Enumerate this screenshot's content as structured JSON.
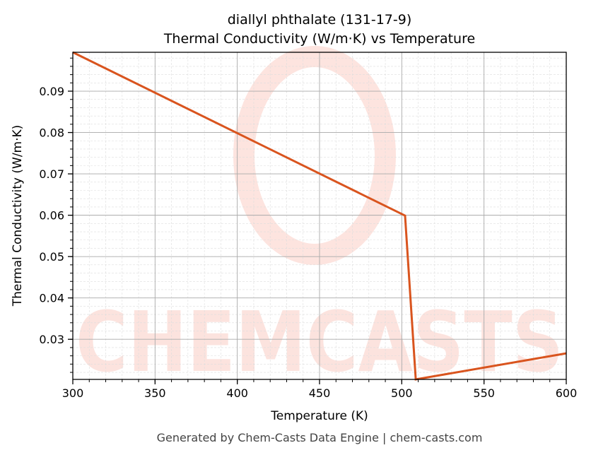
{
  "chart_data": {
    "type": "line",
    "title": "diallyl phthalate (131-17-9)",
    "subtitle": "Thermal Conductivity (W/m·K) vs Temperature",
    "xlabel": "Temperature (K)",
    "ylabel": "Thermal Conductivity (W/m·K)",
    "xlim": [
      300,
      600
    ],
    "ylim": [
      0.0203,
      0.0994
    ],
    "xticks": [
      300,
      350,
      400,
      450,
      500,
      550,
      600
    ],
    "yticks": [
      0.03,
      0.04,
      0.05,
      0.06,
      0.07,
      0.08,
      0.09
    ],
    "ytick_labels": [
      "0.03",
      "0.04",
      "0.05",
      "0.06",
      "0.07",
      "0.08",
      "0.09"
    ],
    "grid": true,
    "series": [
      {
        "x": [
          300,
          502,
          508.5,
          600
        ],
        "y": [
          0.0994,
          0.0599,
          0.0203,
          0.0266
        ],
        "color": "#d9541e"
      }
    ],
    "watermark": "CHEMCASTS"
  },
  "footer": "Generated by Chem-Casts Data Engine | chem-casts.com"
}
